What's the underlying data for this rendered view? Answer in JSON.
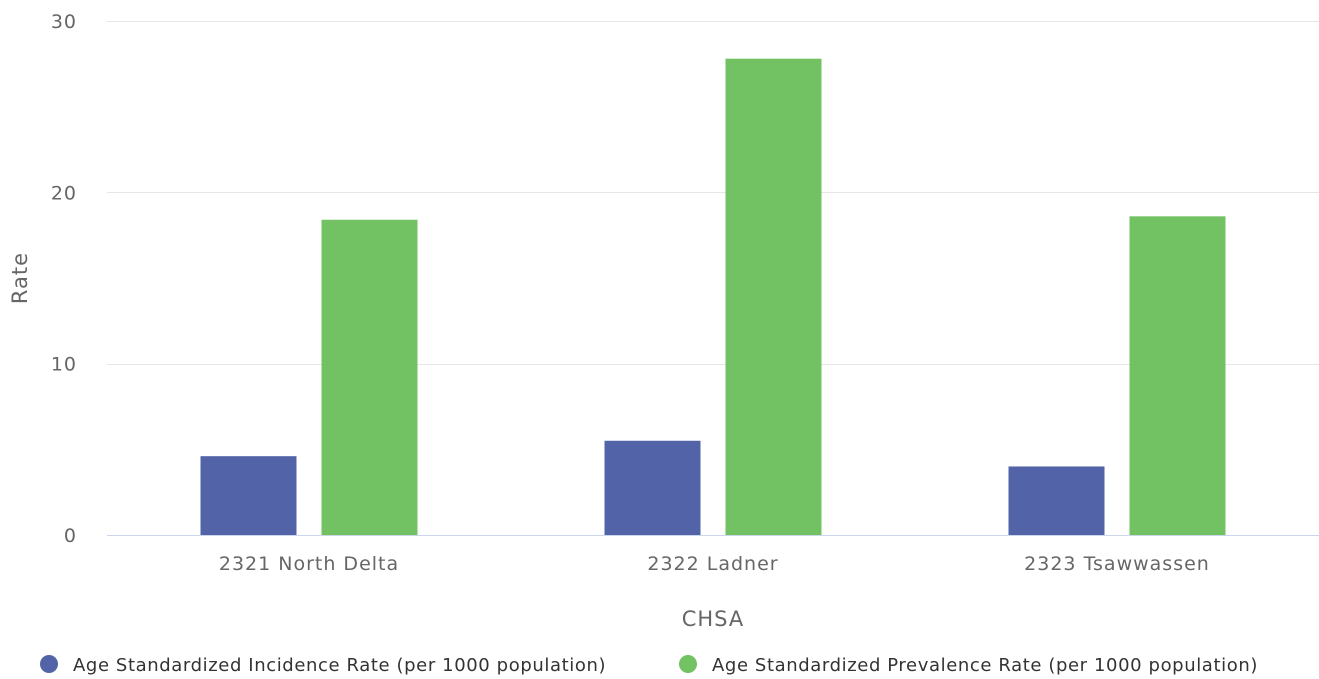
{
  "chart_data": {
    "type": "bar",
    "title": "",
    "xlabel": "CHSA",
    "ylabel": "Rate",
    "ylim": [
      0,
      30
    ],
    "yticks": [
      0,
      10,
      20,
      30
    ],
    "grid": true,
    "legend_position": "bottom",
    "categories": [
      "2321 North Delta",
      "2322 Ladner",
      "2323 Tsawwassen"
    ],
    "series": [
      {
        "name": "Age Standardized Incidence Rate (per 1000 population)",
        "color": "#5363a8",
        "values": [
          4.6,
          5.5,
          4.0
        ]
      },
      {
        "name": "Age Standardized Prevalence Rate (per 1000 population)",
        "color": "#72c162",
        "values": [
          18.4,
          27.8,
          18.6
        ]
      }
    ]
  }
}
